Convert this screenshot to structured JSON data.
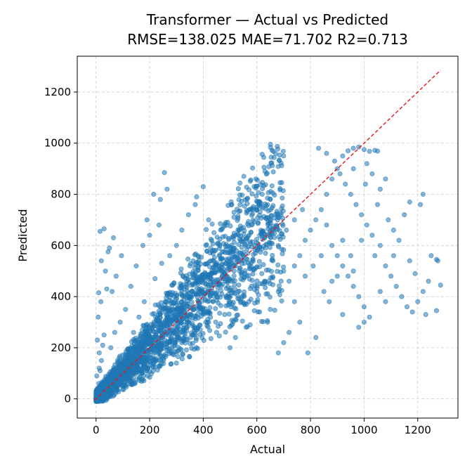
{
  "chart_data": {
    "type": "scatter",
    "title": "Transformer — Actual vs Predicted",
    "subtitle": "RMSE=138.025 MAE=71.702 R2=0.713",
    "xlabel": "Actual",
    "ylabel": "Predicted",
    "xlim": [
      -70,
      1350
    ],
    "ylim": [
      -75,
      1340
    ],
    "xticks": [
      0,
      200,
      400,
      600,
      800,
      1000,
      1200
    ],
    "yticks": [
      0,
      200,
      400,
      600,
      800,
      1000,
      1200
    ],
    "xtick_labels": [
      "0",
      "200",
      "400",
      "600",
      "800",
      "1000",
      "1200"
    ],
    "ytick_labels": [
      "0",
      "200",
      "400",
      "600",
      "800",
      "1000",
      "1200"
    ],
    "grid": true,
    "legend": "none",
    "colors": {
      "points": "#1f77b4",
      "reference_line": "#e8141b"
    },
    "reference_line": {
      "style": "dashed",
      "points": [
        [
          -5,
          -5
        ],
        [
          1285,
          1285
        ]
      ]
    },
    "series": [
      {
        "values": [
          [
            2,
            5
          ],
          [
            5,
            20
          ],
          [
            8,
            40
          ],
          [
            10,
            60
          ],
          [
            3,
            90
          ],
          [
            15,
            110
          ],
          [
            20,
            150
          ],
          [
            12,
            180
          ],
          [
            25,
            210
          ],
          [
            30,
            250
          ],
          [
            8,
            320
          ],
          [
            18,
            380
          ],
          [
            40,
            430
          ],
          [
            35,
            500
          ],
          [
            20,
            540
          ],
          [
            15,
            655
          ],
          [
            30,
            665
          ],
          [
            10,
            415
          ],
          [
            5,
            230
          ],
          [
            12,
            120
          ],
          [
            45,
            60
          ],
          [
            60,
            30
          ],
          [
            80,
            75
          ],
          [
            100,
            90
          ],
          [
            120,
            140
          ],
          [
            55,
            200
          ],
          [
            70,
            260
          ],
          [
            90,
            300
          ],
          [
            110,
            350
          ],
          [
            60,
            420
          ],
          [
            75,
            480
          ],
          [
            95,
            560
          ],
          [
            50,
            590
          ],
          [
            45,
            575
          ],
          [
            65,
            630
          ],
          [
            130,
            120
          ],
          [
            150,
            200
          ],
          [
            170,
            160
          ],
          [
            140,
            260
          ],
          [
            160,
            320
          ],
          [
            180,
            380
          ],
          [
            130,
            440
          ],
          [
            150,
            520
          ],
          [
            175,
            600
          ],
          [
            200,
            640
          ],
          [
            190,
            700
          ],
          [
            215,
            800
          ],
          [
            235,
            680
          ],
          [
            255,
            885
          ],
          [
            240,
            780
          ],
          [
            265,
            820
          ],
          [
            210,
            230
          ],
          [
            230,
            300
          ],
          [
            250,
            350
          ],
          [
            270,
            410
          ],
          [
            220,
            470
          ],
          [
            245,
            530
          ],
          [
            275,
            560
          ],
          [
            260,
            250
          ],
          [
            280,
            180
          ],
          [
            300,
            140
          ],
          [
            320,
            220
          ],
          [
            340,
            280
          ],
          [
            310,
            330
          ],
          [
            330,
            400
          ],
          [
            360,
            450
          ],
          [
            350,
            520
          ],
          [
            380,
            560
          ],
          [
            300,
            600
          ],
          [
            320,
            660
          ],
          [
            345,
            720
          ],
          [
            375,
            790
          ],
          [
            400,
            830
          ],
          [
            370,
            760
          ],
          [
            420,
            700
          ],
          [
            440,
            650
          ],
          [
            410,
            600
          ],
          [
            430,
            540
          ],
          [
            460,
            500
          ],
          [
            400,
            470
          ],
          [
            380,
            350
          ],
          [
            420,
            300
          ],
          [
            450,
            260
          ],
          [
            480,
            330
          ],
          [
            500,
            380
          ],
          [
            530,
            420
          ],
          [
            490,
            460
          ],
          [
            520,
            520
          ],
          [
            550,
            560
          ],
          [
            560,
            620
          ],
          [
            580,
            680
          ],
          [
            600,
            740
          ],
          [
            620,
            800
          ],
          [
            590,
            830
          ],
          [
            610,
            760
          ],
          [
            650,
            700
          ],
          [
            640,
            640
          ],
          [
            680,
            600
          ],
          [
            660,
            540
          ],
          [
            700,
            500
          ],
          [
            630,
            460
          ],
          [
            600,
            420
          ],
          [
            570,
            380
          ],
          [
            610,
            340
          ],
          [
            640,
            300
          ],
          [
            560,
            280
          ],
          [
            520,
            240
          ],
          [
            500,
            200
          ],
          [
            680,
            420
          ],
          [
            720,
            460
          ],
          [
            740,
            520
          ],
          [
            760,
            560
          ],
          [
            780,
            620
          ],
          [
            800,
            660
          ],
          [
            820,
            700
          ],
          [
            840,
            740
          ],
          [
            860,
            800
          ],
          [
            880,
            860
          ],
          [
            900,
            900
          ],
          [
            920,
            950
          ],
          [
            940,
            970
          ],
          [
            960,
            980
          ],
          [
            980,
            985
          ],
          [
            1000,
            975
          ],
          [
            1020,
            968
          ],
          [
            1040,
            972
          ],
          [
            1050,
            969
          ],
          [
            830,
            980
          ],
          [
            860,
            960
          ],
          [
            890,
            930
          ],
          [
            910,
            880
          ],
          [
            930,
            840
          ],
          [
            950,
            800
          ],
          [
            970,
            760
          ],
          [
            990,
            720
          ],
          [
            1010,
            680
          ],
          [
            1030,
            640
          ],
          [
            880,
            600
          ],
          [
            900,
            560
          ],
          [
            920,
            520
          ],
          [
            940,
            480
          ],
          [
            960,
            440
          ],
          [
            980,
            400
          ],
          [
            1000,
            360
          ],
          [
            1020,
            320
          ],
          [
            1040,
            560
          ],
          [
            1060,
            600
          ],
          [
            1080,
            520
          ],
          [
            1100,
            480
          ],
          [
            1120,
            440
          ],
          [
            1140,
            400
          ],
          [
            1160,
            360
          ],
          [
            1180,
            340
          ],
          [
            1200,
            380
          ],
          [
            1220,
            420
          ],
          [
            1240,
            460
          ],
          [
            1110,
            560
          ],
          [
            1130,
            620
          ],
          [
            1150,
            720
          ],
          [
            1170,
            770
          ],
          [
            1210,
            760
          ],
          [
            1220,
            800
          ],
          [
            1250,
            560
          ],
          [
            1270,
            545
          ],
          [
            1275,
            540
          ],
          [
            1285,
            445
          ],
          [
            1270,
            345
          ],
          [
            1230,
            330
          ],
          [
            1190,
            490
          ],
          [
            1170,
            540
          ],
          [
            790,
            180
          ],
          [
            820,
            240
          ],
          [
            760,
            300
          ],
          [
            740,
            380
          ],
          [
            850,
            420
          ],
          [
            870,
            380
          ],
          [
            720,
            260
          ],
          [
            700,
            220
          ],
          [
            680,
            180
          ],
          [
            840,
            560
          ],
          [
            810,
            520
          ],
          [
            780,
            480
          ],
          [
            880,
            460
          ],
          [
            950,
            560
          ],
          [
            990,
            620
          ],
          [
            1060,
            820
          ],
          [
            1080,
            860
          ],
          [
            1010,
            920
          ],
          [
            1030,
            880
          ],
          [
            960,
            900
          ],
          [
            1005,
            840
          ],
          [
            920,
            620
          ],
          [
            860,
            680
          ],
          [
            770,
            740
          ],
          [
            740,
            700
          ],
          [
            710,
            660
          ],
          [
            690,
            720
          ],
          [
            650,
            780
          ],
          [
            1050,
            760
          ],
          [
            1090,
            700
          ],
          [
            1110,
            660
          ],
          [
            1060,
            420
          ],
          [
            1080,
            380
          ],
          [
            1000,
            300
          ],
          [
            980,
            280
          ],
          [
            920,
            330
          ],
          [
            960,
            500
          ],
          [
            900,
            480
          ]
        ]
      }
    ]
  }
}
